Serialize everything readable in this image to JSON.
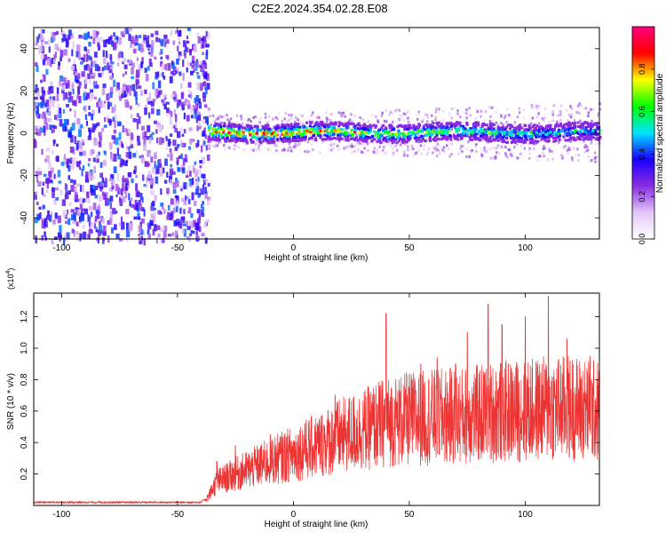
{
  "figure": {
    "title": "C2E2.2024.354.02.28.E08"
  },
  "chart_data": [
    {
      "type": "heatmap",
      "xlabel": "Height of straight line (km)",
      "ylabel": "Frequency (Hz)",
      "xlim": [
        -112,
        132
      ],
      "ylim": [
        -50,
        50
      ],
      "xticks": [
        -100,
        -50,
        0,
        50,
        100
      ],
      "yticks": [
        -40,
        -20,
        0,
        20,
        40
      ],
      "noise_region_x": [
        -112,
        -37
      ],
      "signal_band": {
        "x_start": -37,
        "x_end": 132,
        "center_hz": 1,
        "halfwidth_hz": 3
      },
      "colorbar": {
        "label": "Normalized spectral amplitude",
        "range": [
          0,
          1
        ],
        "ticks": [
          0.0,
          0.2,
          0.4,
          0.6,
          0.8
        ],
        "colors": [
          "#ffffff",
          "#e3c6f7",
          "#8a2be2",
          "#1a00ff",
          "#00e5ff",
          "#00ff00",
          "#ffff00",
          "#ff0000",
          "#ff0080"
        ]
      }
    },
    {
      "type": "line",
      "xlabel": "Height of straight line (km)",
      "ylabel": "SNR (10 * v/v)",
      "yscale_label": "(x10",
      "yscale_exp": "4",
      "yscale_close": ")",
      "xlim": [
        -112,
        132
      ],
      "ylim": [
        0,
        1.35
      ],
      "xticks": [
        -100,
        -50,
        0,
        50,
        100
      ],
      "yticks": [
        0.2,
        0.4,
        0.6,
        0.8,
        1.0,
        1.2
      ],
      "color": "#ee3333",
      "envelope": [
        [
          -112,
          0.02
        ],
        [
          -40,
          0.02
        ],
        [
          -37,
          0.05
        ],
        [
          -33,
          0.15
        ],
        [
          -25,
          0.2
        ],
        [
          -10,
          0.28
        ],
        [
          0,
          0.33
        ],
        [
          10,
          0.38
        ],
        [
          20,
          0.44
        ],
        [
          30,
          0.48
        ],
        [
          40,
          0.53
        ],
        [
          50,
          0.55
        ],
        [
          60,
          0.56
        ],
        [
          70,
          0.57
        ],
        [
          80,
          0.58
        ],
        [
          90,
          0.6
        ],
        [
          100,
          0.6
        ],
        [
          110,
          0.62
        ],
        [
          120,
          0.62
        ],
        [
          132,
          0.6
        ]
      ],
      "peaks": [
        [
          -33,
          0.28
        ],
        [
          -25,
          0.38
        ],
        [
          -10,
          0.45
        ],
        [
          5,
          0.52
        ],
        [
          18,
          0.7
        ],
        [
          40,
          1.22
        ],
        [
          55,
          0.9
        ],
        [
          62,
          0.94
        ],
        [
          70,
          0.9
        ],
        [
          75,
          1.1
        ],
        [
          84,
          1.28
        ],
        [
          90,
          1.15
        ],
        [
          100,
          1.2
        ],
        [
          110,
          1.33
        ],
        [
          118,
          1.06
        ],
        [
          128,
          0.95
        ]
      ]
    }
  ]
}
